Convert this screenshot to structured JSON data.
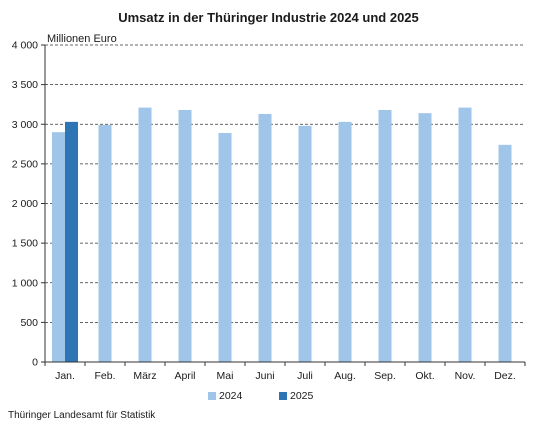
{
  "title": "Umsatz in der Thüringer Industrie 2024 und 2025",
  "source": "Thüringer Landesamt für Statistik",
  "chart_data": {
    "type": "bar",
    "title": "Umsatz in der Thüringer Industrie 2024 und 2025",
    "ylabel": "Millionen Euro",
    "xlabel": "",
    "categories": [
      "Jan.",
      "Feb.",
      "März",
      "April",
      "Mai",
      "Juni",
      "Juli",
      "Aug.",
      "Sep.",
      "Okt.",
      "Nov.",
      "Dez."
    ],
    "ylim": [
      0,
      4000
    ],
    "yticks": [
      0,
      500,
      1000,
      1500,
      2000,
      2500,
      3000,
      3500,
      4000
    ],
    "ytick_labels": [
      "0",
      "500",
      "1 000",
      "1 500",
      "2 000",
      "2 500",
      "3 000",
      "3 500",
      "4 000"
    ],
    "grid": "horizontal dashed",
    "legend_position": "bottom",
    "series": [
      {
        "name": "2024",
        "color": "#9fc5e8",
        "values": [
          2900,
          2990,
          3210,
          3180,
          2890,
          3130,
          2980,
          3030,
          3180,
          3140,
          3210,
          2740
        ]
      },
      {
        "name": "2025",
        "color": "#2e75b6",
        "values": [
          3030,
          null,
          null,
          null,
          null,
          null,
          null,
          null,
          null,
          null,
          null,
          null
        ]
      }
    ]
  }
}
